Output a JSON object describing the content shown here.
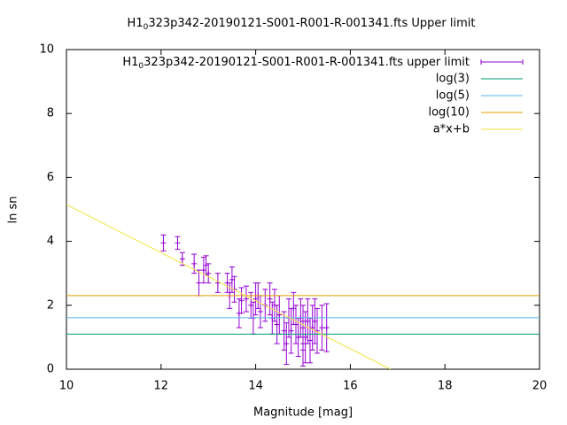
{
  "chart_data": {
    "type": "scatter",
    "title": [
      "H1",
      "0",
      "323p342-20190121-S001-R001-R-001341.fts Upper limit"
    ],
    "x_label": "Magnitude [mag]",
    "y_label": "ln sn",
    "xlim": [
      10,
      20
    ],
    "ylim": [
      0,
      10
    ],
    "xticks": [
      10,
      12,
      14,
      16,
      18,
      20
    ],
    "yticks": [
      0,
      2,
      4,
      6,
      8,
      10
    ],
    "legend": "top-right",
    "series": [
      {
        "name": [
          "H1",
          "0",
          "323p342-20190121-S001-R001-R-001341.fts upper limit"
        ],
        "color": "#9400d3",
        "style": "errorbars",
        "x": [
          12.05,
          12.35,
          12.45,
          12.7,
          12.8,
          12.9,
          12.95,
          13.0,
          13.2,
          13.4,
          13.45,
          13.5,
          13.55,
          13.65,
          13.7,
          13.8,
          13.9,
          13.95,
          14.0,
          14.05,
          14.1,
          14.2,
          14.3,
          14.35,
          14.4,
          14.45,
          14.5,
          14.6,
          14.65,
          14.7,
          14.75,
          14.8,
          14.85,
          14.9,
          14.95,
          15.0,
          15.0,
          15.05,
          15.1,
          15.15,
          15.2,
          15.25,
          15.3,
          15.4,
          15.5
        ],
        "values": [
          3.95,
          3.95,
          3.45,
          3.3,
          2.7,
          3.1,
          3.25,
          3.0,
          2.7,
          2.7,
          2.3,
          2.8,
          2.5,
          1.75,
          2.15,
          2.2,
          2.0,
          1.6,
          2.2,
          2.3,
          1.8,
          2.0,
          2.2,
          1.6,
          2.0,
          1.4,
          1.7,
          1.2,
          0.8,
          1.6,
          1.2,
          1.9,
          1.4,
          1.0,
          1.6,
          0.8,
          1.3,
          1.0,
          1.5,
          0.9,
          1.3,
          1.5,
          1.2,
          1.3,
          1.3
        ],
        "errors": [
          0.25,
          0.2,
          0.2,
          0.3,
          0.4,
          0.4,
          0.3,
          0.3,
          0.3,
          0.3,
          0.4,
          0.4,
          0.4,
          0.45,
          0.4,
          0.4,
          0.4,
          0.5,
          0.5,
          0.4,
          0.5,
          0.5,
          0.5,
          0.5,
          0.5,
          0.6,
          0.6,
          0.6,
          0.65,
          0.6,
          0.7,
          0.5,
          0.6,
          0.6,
          0.6,
          0.7,
          0.7,
          0.8,
          0.7,
          0.7,
          0.7,
          0.7,
          0.7,
          0.7,
          0.75
        ]
      },
      {
        "name": "log(3)",
        "color": "#009e73",
        "style": "line",
        "x": [
          10,
          20
        ],
        "values": [
          1.0986,
          1.0986
        ]
      },
      {
        "name": "log(5)",
        "color": "#56b4e9",
        "style": "line",
        "x": [
          10,
          20
        ],
        "values": [
          1.6094,
          1.6094
        ]
      },
      {
        "name": "log(10)",
        "color": "#e69f00",
        "style": "line",
        "x": [
          10,
          20
        ],
        "values": [
          2.3026,
          2.3026
        ]
      },
      {
        "name": "a*x+b",
        "color": "#f0e442",
        "style": "line",
        "x": [
          10,
          16.85
        ],
        "values": [
          5.15,
          0
        ]
      }
    ]
  }
}
